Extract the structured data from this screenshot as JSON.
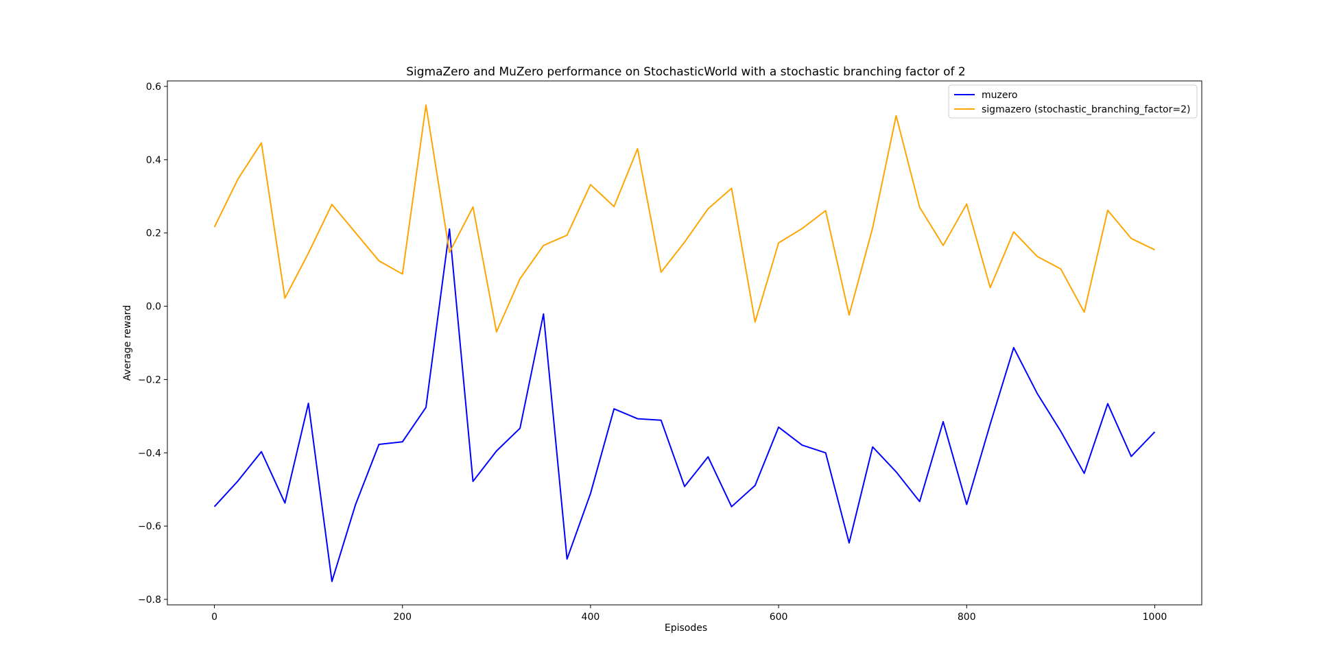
{
  "chart_data": {
    "type": "line",
    "title": "SigmaZero and MuZero performance on StochasticWorld with a stochastic branching factor of 2",
    "xlabel": "Episodes",
    "ylabel": "Average reward",
    "xlim": [
      -50,
      1050
    ],
    "ylim": [
      -0.815,
      0.615
    ],
    "x_ticks": [
      0,
      200,
      400,
      600,
      800,
      1000
    ],
    "x_tick_labels": [
      "0",
      "200",
      "400",
      "600",
      "800",
      "1000"
    ],
    "y_ticks": [
      -0.8,
      -0.6,
      -0.4,
      -0.2,
      0.0,
      0.2,
      0.4,
      0.6
    ],
    "y_tick_labels": [
      "−0.8",
      "−0.6",
      "−0.4",
      "−0.2",
      "0.0",
      "0.2",
      "0.4",
      "0.6"
    ],
    "grid": false,
    "legend_position": "top-right",
    "x": [
      0,
      25,
      50,
      75,
      100,
      125,
      150,
      175,
      200,
      225,
      250,
      275,
      300,
      325,
      350,
      375,
      400,
      425,
      450,
      475,
      500,
      525,
      550,
      575,
      600,
      625,
      650,
      675,
      700,
      725,
      750,
      775,
      800,
      825,
      850,
      875,
      900,
      925,
      950,
      975,
      1000
    ],
    "series": [
      {
        "name": "muzero",
        "color": "#0000ff",
        "values": [
          -0.547,
          -0.477,
          -0.397,
          -0.537,
          -0.265,
          -0.751,
          -0.542,
          -0.377,
          -0.37,
          -0.276,
          0.211,
          -0.478,
          -0.395,
          -0.333,
          -0.021,
          -0.69,
          -0.511,
          -0.28,
          -0.307,
          -0.311,
          -0.492,
          -0.411,
          -0.547,
          -0.489,
          -0.33,
          -0.379,
          -0.4,
          -0.646,
          -0.384,
          -0.452,
          -0.533,
          -0.315,
          -0.541,
          -0.322,
          -0.113,
          -0.238,
          -0.341,
          -0.456,
          -0.266,
          -0.41,
          -0.343
        ]
      },
      {
        "name": "sigmazero (stochastic_branching_factor=2)",
        "color": "#ffa500",
        "values": [
          0.216,
          0.347,
          0.446,
          0.022,
          0.145,
          0.278,
          0.201,
          0.124,
          0.088,
          0.549,
          0.147,
          0.271,
          -0.07,
          0.075,
          0.166,
          0.194,
          0.332,
          0.272,
          0.43,
          0.093,
          0.175,
          0.266,
          0.322,
          -0.043,
          0.173,
          0.212,
          0.261,
          -0.024,
          0.214,
          0.52,
          0.27,
          0.166,
          0.279,
          0.051,
          0.203,
          0.136,
          0.102,
          -0.016,
          0.262,
          0.185,
          0.154
        ]
      }
    ]
  }
}
